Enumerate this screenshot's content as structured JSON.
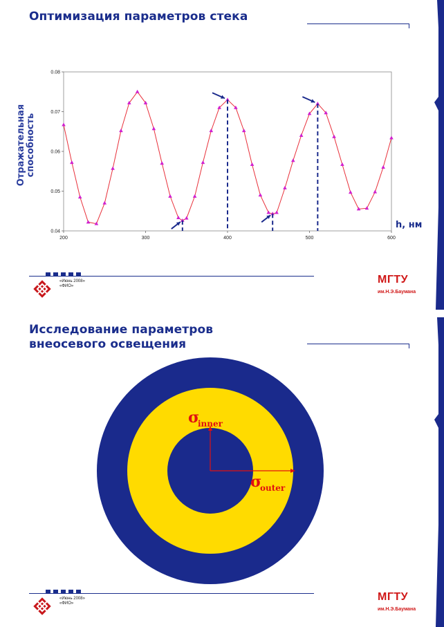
{
  "slide1": {
    "title": "Оптимизация параметров стека",
    "footer": {
      "date": "«Июнь 2008»",
      "author": "«ФИО»"
    },
    "brand": "МГТУ",
    "brand_sub": "им.Н.Э.Баумана"
  },
  "slide2": {
    "title": "Исследование параметров внеосевого освещения",
    "sigma_inner": "inner",
    "sigma_outer": "outer",
    "sigma_symbol": "σ",
    "footer": {
      "date": "«Июнь 2008»",
      "author": "«ФИО»"
    },
    "brand": "МГТУ",
    "brand_sub": "им.Н.Э.Баумана",
    "colors": {
      "outer_ring": "#1a2a8c",
      "middle_ring": "#ffdb00",
      "inner_disc": "#1a2a8c",
      "sigma": "#e01010"
    }
  },
  "chart_data": {
    "type": "line",
    "title": "",
    "xlabel": "h, нм",
    "ylabel": "Отражательная способность",
    "xlim": [
      200,
      600
    ],
    "ylim": [
      0.04,
      0.08
    ],
    "xticks": [
      200,
      300,
      400,
      500,
      600
    ],
    "yticks": [
      0.04,
      0.05,
      0.06,
      0.07,
      0.08
    ],
    "xtick_labels": [
      "200",
      "300",
      "400",
      "500",
      "600"
    ],
    "ytick_labels": [
      "0.04",
      "0.05",
      "0.06",
      "0.07",
      "0.08"
    ],
    "series": [
      {
        "color": "#e8303a",
        "marker_color": "#d020d0",
        "x": [
          200,
          210,
          220,
          230,
          240,
          250,
          260,
          270,
          280,
          290,
          300,
          310,
          320,
          330,
          340,
          345,
          350,
          360,
          370,
          380,
          390,
          400,
          410,
          420,
          430,
          440,
          450,
          455,
          460,
          470,
          480,
          490,
          500,
          510,
          520,
          530,
          540,
          550,
          560,
          570,
          580,
          590,
          600
        ],
        "y": [
          0.0667,
          0.0572,
          0.0485,
          0.0422,
          0.0418,
          0.047,
          0.0557,
          0.0652,
          0.0722,
          0.075,
          0.0722,
          0.0657,
          0.057,
          0.0487,
          0.0433,
          0.0426,
          0.0432,
          0.0487,
          0.0572,
          0.0652,
          0.071,
          0.073,
          0.071,
          0.0652,
          0.0567,
          0.049,
          0.0446,
          0.0443,
          0.0446,
          0.0508,
          0.0577,
          0.064,
          0.0695,
          0.072,
          0.0697,
          0.0637,
          0.0567,
          0.0497,
          0.0455,
          0.0457,
          0.0498,
          0.056,
          0.0634
        ]
      }
    ],
    "markers": [
      {
        "x": 345,
        "y": 0.0426
      },
      {
        "x": 400,
        "y": 0.073
      },
      {
        "x": 455,
        "y": 0.0443
      },
      {
        "x": 510,
        "y": 0.072
      }
    ],
    "grid": false
  }
}
